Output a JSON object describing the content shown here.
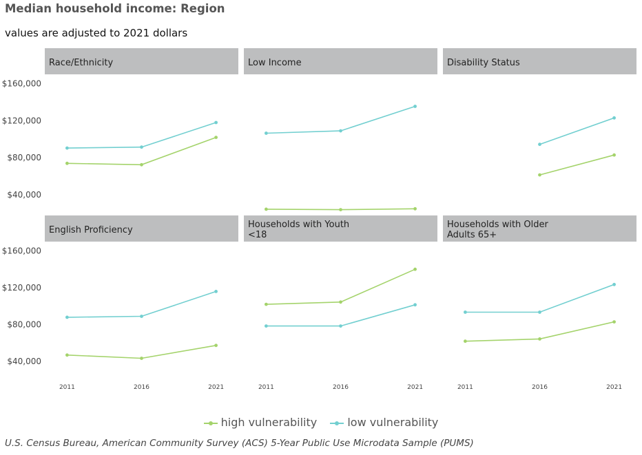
{
  "title": "Median household income: Region",
  "subtitle": "values are adjusted to 2021 dollars",
  "caption": "U.S. Census Bureau, American Community Survey (ACS) 5-Year Public Use Microdata Sample (PUMS)",
  "colors": {
    "high vulnerability": "#a4d36b",
    "low vulnerability": "#72cfd0",
    "strip": "#bdbebf",
    "axis_text": "#444444"
  },
  "chart_data": {
    "type": "line",
    "facet_layout": "2 rows x 3 columns, shared axes",
    "x": [
      2011,
      2016,
      2021
    ],
    "x_ticks": [
      "2011",
      "2016",
      "2021"
    ],
    "y_ticks": [
      40000,
      80000,
      120000,
      160000
    ],
    "y_tick_labels": [
      "$40,000",
      "$80,000",
      "$120,000",
      "$160,000"
    ],
    "ylim": [
      20000,
      170000
    ],
    "xlim": [
      2009.5,
      2022.5
    ],
    "grid": false,
    "legend_position": "bottom",
    "legend": [
      "high vulnerability",
      "low vulnerability"
    ],
    "facets": [
      {
        "label": "Race/Ethnicity",
        "series": [
          {
            "name": "high vulnerability",
            "values": [
              74000,
              72500,
              102000
            ]
          },
          {
            "name": "low vulnerability",
            "values": [
              90500,
              91500,
              118000
            ]
          }
        ]
      },
      {
        "label": "Low Income",
        "series": [
          {
            "name": "high vulnerability",
            "values": [
              24500,
              24000,
              25000
            ]
          },
          {
            "name": "low vulnerability",
            "values": [
              106500,
              109000,
              135500
            ]
          }
        ]
      },
      {
        "label": "Disability Status",
        "series": [
          {
            "name": "high vulnerability",
            "values": [
              null,
              61500,
              83000
            ]
          },
          {
            "name": "low vulnerability",
            "values": [
              null,
              94500,
              123000
            ]
          }
        ]
      },
      {
        "label": "English Proficiency",
        "series": [
          {
            "name": "high vulnerability",
            "values": [
              47000,
              43500,
              57500
            ]
          },
          {
            "name": "low vulnerability",
            "values": [
              88000,
              89000,
              116000
            ]
          }
        ]
      },
      {
        "label": "Households with Youth\n<18",
        "series": [
          {
            "name": "high vulnerability",
            "values": [
              102000,
              104500,
              140000
            ]
          },
          {
            "name": "low vulnerability",
            "values": [
              78500,
              78500,
              101500
            ]
          }
        ]
      },
      {
        "label": "Households with Older\nAdults 65+",
        "series": [
          {
            "name": "high vulnerability",
            "values": [
              62000,
              64500,
              83000
            ]
          },
          {
            "name": "low vulnerability",
            "values": [
              93500,
              93500,
              123500
            ]
          }
        ]
      }
    ]
  }
}
